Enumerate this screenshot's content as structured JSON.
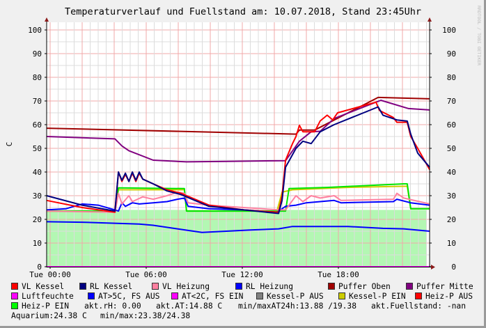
{
  "chart_data": {
    "type": "line",
    "title": "Temperaturverlauf und Fuellstand am: 10.07.2018, Stand 23:45Uhr",
    "ylabel": "C",
    "ylim": [
      0,
      104
    ],
    "yticks": [
      "0",
      "10",
      "20",
      "30",
      "40",
      "50",
      "60",
      "70",
      "80",
      "90",
      "100"
    ],
    "xticks": [
      "Tue 00:00",
      "Tue 06:00",
      "Tue 12:00",
      "Tue 18:00"
    ],
    "xlim": [
      "Mon 23:47",
      "Tue 23:42"
    ],
    "grid": true,
    "watermark": "RRDTOOL / TOBI OETIKER",
    "area": {
      "color": "#b3f7b3",
      "values": [
        [
          "Mon 23:47",
          24
        ],
        [
          "Tue 23:29",
          24
        ]
      ]
    },
    "series": [
      {
        "name": "Luftfeuchte",
        "color": "#ff00ff",
        "values": [
          [
            "Mon 23:47",
            0
          ],
          [
            "Tue 23:42",
            0
          ]
        ]
      },
      {
        "name": "AT>5C, FS AUS",
        "color": "#0000ff",
        "values": [
          [
            "Mon 23:47",
            19
          ],
          [
            "Tue 02:00",
            18.8
          ],
          [
            "Tue 05:34",
            18
          ],
          [
            "Tue 06:26",
            17.5
          ],
          [
            "Tue 07:57",
            16
          ],
          [
            "Tue 09:29",
            14.5
          ],
          [
            "Tue 11:00",
            15
          ],
          [
            "Tue 12:31",
            15.5
          ],
          [
            "Tue 14:16",
            16
          ],
          [
            "Tue 15:08",
            17
          ],
          [
            "Tue 18:36",
            17
          ],
          [
            "Tue 20:47",
            16.2
          ],
          [
            "Tue 22:05",
            16
          ],
          [
            "Tue 23:42",
            15
          ]
        ]
      },
      {
        "name": "Kessel-P EIN",
        "color": "#cccc00",
        "values": [
          [
            "Mon 23:47",
            23.5
          ],
          [
            "Tue 04:03",
            23.5
          ],
          [
            "Tue 04:16",
            32.5
          ],
          [
            "Tue 08:23",
            32.5
          ],
          [
            "Tue 08:31",
            23.5
          ],
          [
            "Tue 14:10",
            23.5
          ],
          [
            "Tue 14:29",
            31.5
          ],
          [
            "Tue 15:08",
            32.5
          ],
          [
            "Tue 18:36",
            33.5
          ],
          [
            "Tue 22:18",
            34
          ],
          [
            "Tue 22:31",
            24.5
          ],
          [
            "Tue 23:42",
            24.5
          ]
        ]
      },
      {
        "name": "Heiz-P EIN",
        "color": "#00e600",
        "values": [
          [
            "Mon 23:47",
            23.5
          ],
          [
            "Tue 04:03",
            23.5
          ],
          [
            "Tue 04:16",
            33.3
          ],
          [
            "Tue 08:23",
            33
          ],
          [
            "Tue 08:31",
            23.5
          ],
          [
            "Tue 14:42",
            23.5
          ],
          [
            "Tue 14:55",
            33
          ],
          [
            "Tue 17:18",
            33.5
          ],
          [
            "Tue 22:05",
            35
          ],
          [
            "Tue 22:18",
            35
          ],
          [
            "Tue 22:31",
            24.5
          ],
          [
            "Tue 23:42",
            24.5
          ]
        ]
      },
      {
        "name": "RL Heizung",
        "color": "#0000ff",
        "values": [
          [
            "Mon 23:47",
            24
          ],
          [
            "Tue 01:00",
            24.5
          ],
          [
            "Tue 02:00",
            26.5
          ],
          [
            "Tue 03:00",
            26
          ],
          [
            "Tue 04:03",
            24
          ],
          [
            "Tue 04:16",
            23.5
          ],
          [
            "Tue 04:29",
            27
          ],
          [
            "Tue 04:42",
            25.5
          ],
          [
            "Tue 05:08",
            27
          ],
          [
            "Tue 05:34",
            26.5
          ],
          [
            "Tue 06:26",
            27
          ],
          [
            "Tue 07:18",
            27.5
          ],
          [
            "Tue 07:57",
            28.5
          ],
          [
            "Tue 08:23",
            29
          ],
          [
            "Tue 08:37",
            25.5
          ],
          [
            "Tue 09:55",
            24.5
          ],
          [
            "Tue 12:05",
            24
          ],
          [
            "Tue 14:10",
            23
          ],
          [
            "Tue 14:42",
            25.5
          ],
          [
            "Tue 15:21",
            26
          ],
          [
            "Tue 16:00",
            27
          ],
          [
            "Tue 17:44",
            28
          ],
          [
            "Tue 18:10",
            27
          ],
          [
            "Tue 21:26",
            27.5
          ],
          [
            "Tue 21:39",
            28.5
          ],
          [
            "Tue 22:31",
            27
          ],
          [
            "Tue 23:42",
            26
          ]
        ]
      },
      {
        "name": "VL Heizung",
        "color": "#ff80a0",
        "values": [
          [
            "Mon 23:47",
            23.5
          ],
          [
            "Tue 04:03",
            23
          ],
          [
            "Tue 04:16",
            31
          ],
          [
            "Tue 04:29",
            26.5
          ],
          [
            "Tue 04:55",
            30
          ],
          [
            "Tue 05:08",
            27.5
          ],
          [
            "Tue 05:47",
            29.5
          ],
          [
            "Tue 06:26",
            28.5
          ],
          [
            "Tue 07:18",
            30
          ],
          [
            "Tue 07:57",
            31.5
          ],
          [
            "Tue 08:23",
            31
          ],
          [
            "Tue 08:37",
            27
          ],
          [
            "Tue 09:55",
            26
          ],
          [
            "Tue 12:05",
            25
          ],
          [
            "Tue 14:16",
            24
          ],
          [
            "Tue 14:42",
            24
          ],
          [
            "Tue 15:08",
            28
          ],
          [
            "Tue 15:21",
            30
          ],
          [
            "Tue 15:47",
            27.5
          ],
          [
            "Tue 16:18",
            30
          ],
          [
            "Tue 16:52",
            29
          ],
          [
            "Tue 17:44",
            30
          ],
          [
            "Tue 18:10",
            28
          ],
          [
            "Tue 21:26",
            28.5
          ],
          [
            "Tue 21:39",
            31
          ],
          [
            "Tue 22:05",
            29
          ],
          [
            "Tue 23:42",
            26.5
          ]
        ]
      },
      {
        "name": "Puffer Oben",
        "color": "#a00000",
        "values": [
          [
            "Mon 23:47",
            58.5
          ],
          [
            "Tue 15:21",
            56
          ],
          [
            "Tue 15:34",
            57.7
          ],
          [
            "Tue 16:31",
            57.7
          ],
          [
            "Tue 20:29",
            71.5
          ],
          [
            "Tue 23:42",
            70.9
          ]
        ]
      },
      {
        "name": "Puffer Mitte",
        "color": "#800080",
        "values": [
          [
            "Mon 23:47",
            55
          ],
          [
            "Tue 04:03",
            54
          ],
          [
            "Tue 04:29",
            51
          ],
          [
            "Tue 04:55",
            49
          ],
          [
            "Tue 06:26",
            45
          ],
          [
            "Tue 08:31",
            44.3
          ],
          [
            "Tue 11:00",
            44.5
          ],
          [
            "Tue 14:42",
            44.8
          ],
          [
            "Tue 15:34",
            53
          ],
          [
            "Tue 16:18",
            57
          ],
          [
            "Tue 16:52",
            57.2
          ],
          [
            "Tue 17:44",
            62.6
          ],
          [
            "Tue 20:39",
            70.3
          ],
          [
            "Tue 22:23",
            66.8
          ],
          [
            "Tue 23:42",
            66.2
          ]
        ]
      },
      {
        "name": "VL Kessel",
        "color": "#ff0000",
        "values": [
          [
            "Mon 23:47",
            28
          ],
          [
            "Tue 02:00",
            25
          ],
          [
            "Tue 04:03",
            23
          ],
          [
            "Tue 04:16",
            40
          ],
          [
            "Tue 04:29",
            36
          ],
          [
            "Tue 04:42",
            39
          ],
          [
            "Tue 04:55",
            36
          ],
          [
            "Tue 05:08",
            39.5
          ],
          [
            "Tue 05:21",
            36
          ],
          [
            "Tue 05:34",
            39.5
          ],
          [
            "Tue 05:47",
            37
          ],
          [
            "Tue 06:26",
            35
          ],
          [
            "Tue 07:18",
            32.5
          ],
          [
            "Tue 08:10",
            31
          ],
          [
            "Tue 09:55",
            26
          ],
          [
            "Tue 12:05",
            24
          ],
          [
            "Tue 14:16",
            23
          ],
          [
            "Tue 14:29",
            30
          ],
          [
            "Tue 14:42",
            45
          ],
          [
            "Tue 15:08",
            52
          ],
          [
            "Tue 15:21",
            55
          ],
          [
            "Tue 15:34",
            59.7
          ],
          [
            "Tue 15:47",
            57
          ],
          [
            "Tue 16:31",
            57
          ],
          [
            "Tue 16:52",
            61.6
          ],
          [
            "Tue 17:18",
            64
          ],
          [
            "Tue 17:39",
            62
          ],
          [
            "Tue 17:57",
            65
          ],
          [
            "Tue 20:21",
            69.5
          ],
          [
            "Tue 20:34",
            66
          ],
          [
            "Tue 21:26",
            63
          ],
          [
            "Tue 21:39",
            61
          ],
          [
            "Tue 22:18",
            61
          ],
          [
            "Tue 22:31",
            55
          ],
          [
            "Tue 22:57",
            50
          ],
          [
            "Tue 23:42",
            41
          ]
        ]
      },
      {
        "name": "RL Kessel",
        "color": "#000080",
        "values": [
          [
            "Mon 23:47",
            30
          ],
          [
            "Tue 02:00",
            26
          ],
          [
            "Tue 04:03",
            23.5
          ],
          [
            "Tue 04:16",
            40
          ],
          [
            "Tue 04:29",
            36.5
          ],
          [
            "Tue 04:42",
            39.5
          ],
          [
            "Tue 04:55",
            36
          ],
          [
            "Tue 05:08",
            40
          ],
          [
            "Tue 05:21",
            36.5
          ],
          [
            "Tue 05:34",
            40
          ],
          [
            "Tue 05:47",
            37
          ],
          [
            "Tue 06:26",
            35
          ],
          [
            "Tue 07:18",
            32
          ],
          [
            "Tue 08:10",
            30.5
          ],
          [
            "Tue 09:55",
            25.5
          ],
          [
            "Tue 12:05",
            24
          ],
          [
            "Tue 14:16",
            22.5
          ],
          [
            "Tue 14:29",
            28
          ],
          [
            "Tue 14:42",
            42
          ],
          [
            "Tue 15:21",
            50
          ],
          [
            "Tue 15:47",
            53
          ],
          [
            "Tue 16:18",
            52
          ],
          [
            "Tue 16:52",
            57
          ],
          [
            "Tue 17:44",
            60
          ],
          [
            "Tue 20:29",
            67.5
          ],
          [
            "Tue 20:47",
            64
          ],
          [
            "Tue 21:39",
            62
          ],
          [
            "Tue 22:18",
            61.5
          ],
          [
            "Tue 22:31",
            56
          ],
          [
            "Tue 22:57",
            48
          ],
          [
            "Tue 23:42",
            42
          ]
        ]
      }
    ]
  },
  "legend": {
    "items": [
      {
        "label": "VL Kessel",
        "color": "#ff0000"
      },
      {
        "label": "RL Kessel",
        "color": "#000080"
      },
      {
        "label": "VL Heizung",
        "color": "#ff80a0"
      },
      {
        "label": "RL Heizung",
        "color": "#0000ff"
      },
      {
        "label": "Puffer Oben",
        "color": "#a00000"
      },
      {
        "label": "Puffer Mitte",
        "color": "#800080"
      },
      {
        "label": "Luftfeuchte",
        "color": "#ff00ff"
      },
      {
        "label": "AT>5C, FS AUS",
        "color": "#0000ff"
      },
      {
        "label": "AT<2C, FS EIN",
        "color": "#ff00ff"
      },
      {
        "label": "Kessel-P AUS",
        "color": "#808080"
      },
      {
        "label": "Kessel-P EIN",
        "color": "#cccc00"
      },
      {
        "label": "Heiz-P AUS",
        "color": "#ff0000"
      },
      {
        "label": "Heiz-P EIN",
        "color": "#00ff00"
      }
    ],
    "stats": {
      "rh": "akt.rH: 0.00",
      "at": "akt.AT:14.88 C",
      "minmax_at": "min/maxAT24h:13.88 /19.38",
      "fuellstand": "akt.Fuellstand: -nan",
      "aquarium": "Aquarium:24.38 C",
      "aquarium_minmax": "min/max:23.38/24.38"
    }
  }
}
